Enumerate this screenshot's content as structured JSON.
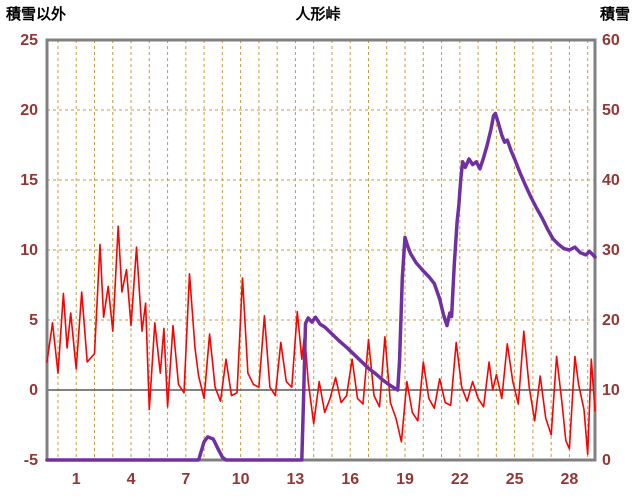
{
  "header": {
    "left_axis_label": "積雪以外",
    "title": "人形峠",
    "right_axis_label": "積雪"
  },
  "chart_data": {
    "type": "line",
    "title": "人形峠",
    "x_axis": {
      "range": [
        -0.6,
        29.4
      ],
      "ticks": [
        1,
        4,
        7,
        10,
        13,
        16,
        19,
        22,
        25,
        28
      ],
      "gridline_step": 1,
      "grid": true
    },
    "left_axis": {
      "label": "積雪以外",
      "range": [
        -5,
        25
      ],
      "ticks": [
        25,
        20,
        15,
        10,
        5,
        0,
        -5
      ],
      "grid": true
    },
    "right_axis": {
      "label": "積雪",
      "range": [
        0,
        60
      ],
      "ticks": [
        60,
        50,
        40,
        30,
        20,
        10,
        0
      ]
    },
    "legend": "none",
    "colors": {
      "grid": "#c49a4a",
      "frame": "#808080",
      "zero_line": "#595959",
      "tick_text": "#943634",
      "title_text": "#000000",
      "background": "#ffffff",
      "series_red": "#ff0000",
      "series_purple": "#7030a0"
    },
    "series": [
      {
        "name": "積雪以外",
        "axis": "left",
        "color": "#ff0000",
        "width": 1.6,
        "points": [
          [
            -0.6,
            2.0
          ],
          [
            -0.3,
            4.8
          ],
          [
            0.0,
            1.2
          ],
          [
            0.3,
            6.9
          ],
          [
            0.5,
            3.0
          ],
          [
            0.7,
            5.5
          ],
          [
            1.0,
            1.5
          ],
          [
            1.3,
            7.0
          ],
          [
            1.6,
            2.0
          ],
          [
            2.0,
            2.6
          ],
          [
            2.3,
            10.4
          ],
          [
            2.5,
            5.2
          ],
          [
            2.75,
            7.4
          ],
          [
            3.0,
            4.2
          ],
          [
            3.3,
            11.7
          ],
          [
            3.5,
            7.0
          ],
          [
            3.75,
            8.6
          ],
          [
            4.0,
            4.6
          ],
          [
            4.3,
            10.2
          ],
          [
            4.6,
            4.2
          ],
          [
            4.8,
            6.2
          ],
          [
            5.0,
            -1.4
          ],
          [
            5.3,
            4.8
          ],
          [
            5.6,
            1.2
          ],
          [
            5.8,
            4.4
          ],
          [
            6.0,
            -1.2
          ],
          [
            6.3,
            4.6
          ],
          [
            6.6,
            0.4
          ],
          [
            6.9,
            -0.2
          ],
          [
            7.2,
            8.3
          ],
          [
            7.5,
            3.0
          ],
          [
            7.7,
            1.0
          ],
          [
            8.0,
            -0.6
          ],
          [
            8.3,
            4.0
          ],
          [
            8.6,
            0.2
          ],
          [
            8.9,
            -0.8
          ],
          [
            9.2,
            2.2
          ],
          [
            9.5,
            -0.4
          ],
          [
            9.8,
            -0.2
          ],
          [
            10.1,
            8.0
          ],
          [
            10.4,
            1.2
          ],
          [
            10.7,
            0.4
          ],
          [
            11.0,
            0.2
          ],
          [
            11.3,
            5.3
          ],
          [
            11.6,
            0.2
          ],
          [
            11.9,
            -0.4
          ],
          [
            12.2,
            3.4
          ],
          [
            12.5,
            0.6
          ],
          [
            12.8,
            0.2
          ],
          [
            13.1,
            5.6
          ],
          [
            13.35,
            2.2
          ],
          [
            13.5,
            4.0
          ],
          [
            13.7,
            0.6
          ],
          [
            14.0,
            -2.4
          ],
          [
            14.3,
            0.6
          ],
          [
            14.6,
            -1.6
          ],
          [
            14.9,
            -0.6
          ],
          [
            15.2,
            0.9
          ],
          [
            15.5,
            -0.9
          ],
          [
            15.8,
            -0.4
          ],
          [
            16.1,
            2.2
          ],
          [
            16.4,
            -0.6
          ],
          [
            16.7,
            -1.0
          ],
          [
            17.0,
            3.6
          ],
          [
            17.3,
            -0.4
          ],
          [
            17.6,
            -1.2
          ],
          [
            17.9,
            3.8
          ],
          [
            18.2,
            -0.9
          ],
          [
            18.5,
            -2.0
          ],
          [
            18.8,
            -3.7
          ],
          [
            19.1,
            0.6
          ],
          [
            19.4,
            -1.6
          ],
          [
            19.7,
            -2.2
          ],
          [
            20.0,
            2.0
          ],
          [
            20.3,
            -0.6
          ],
          [
            20.6,
            -1.3
          ],
          [
            20.9,
            0.8
          ],
          [
            21.2,
            -0.9
          ],
          [
            21.5,
            -1.1
          ],
          [
            21.8,
            3.4
          ],
          [
            22.1,
            0.2
          ],
          [
            22.4,
            -0.8
          ],
          [
            22.7,
            0.6
          ],
          [
            23.0,
            -0.6
          ],
          [
            23.3,
            -1.2
          ],
          [
            23.6,
            2.0
          ],
          [
            23.8,
            0.0
          ],
          [
            24.0,
            1.1
          ],
          [
            24.3,
            -0.6
          ],
          [
            24.6,
            3.3
          ],
          [
            24.9,
            0.6
          ],
          [
            25.2,
            -1.0
          ],
          [
            25.5,
            4.2
          ],
          [
            25.8,
            0.2
          ],
          [
            26.1,
            -2.2
          ],
          [
            26.4,
            1.0
          ],
          [
            26.7,
            -2.0
          ],
          [
            27.0,
            -3.2
          ],
          [
            27.3,
            2.4
          ],
          [
            27.6,
            -1.0
          ],
          [
            27.8,
            -3.6
          ],
          [
            28.0,
            -4.2
          ],
          [
            28.3,
            2.4
          ],
          [
            28.5,
            0.4
          ],
          [
            28.8,
            -1.4
          ],
          [
            29.0,
            -4.6
          ],
          [
            29.2,
            2.2
          ],
          [
            29.4,
            -1.5
          ]
        ]
      },
      {
        "name": "積雪",
        "axis": "right",
        "color": "#7030a0",
        "width": 3.5,
        "points": [
          [
            -0.6,
            0
          ],
          [
            7.7,
            0
          ],
          [
            8.0,
            2.6
          ],
          [
            8.2,
            3.3
          ],
          [
            8.5,
            3.0
          ],
          [
            8.8,
            1.4
          ],
          [
            9.0,
            0.4
          ],
          [
            9.2,
            0
          ],
          [
            13.35,
            0
          ],
          [
            13.45,
            9
          ],
          [
            13.55,
            19.5
          ],
          [
            13.7,
            20.3
          ],
          [
            13.9,
            19.7
          ],
          [
            14.1,
            20.4
          ],
          [
            14.35,
            19.4
          ],
          [
            14.6,
            19.0
          ],
          [
            15.0,
            18.0
          ],
          [
            15.4,
            17.0
          ],
          [
            15.8,
            16.1
          ],
          [
            16.2,
            15.1
          ],
          [
            16.6,
            14.1
          ],
          [
            17.0,
            13.1
          ],
          [
            17.4,
            12.3
          ],
          [
            17.8,
            11.4
          ],
          [
            18.1,
            10.8
          ],
          [
            18.4,
            10.3
          ],
          [
            18.6,
            10.0
          ],
          [
            18.7,
            14.0
          ],
          [
            18.85,
            26.0
          ],
          [
            19.0,
            31.8
          ],
          [
            19.15,
            30.5
          ],
          [
            19.3,
            29.5
          ],
          [
            19.6,
            28.2
          ],
          [
            20.0,
            27.0
          ],
          [
            20.3,
            26.2
          ],
          [
            20.6,
            25.2
          ],
          [
            20.9,
            23.0
          ],
          [
            21.1,
            20.8
          ],
          [
            21.3,
            19.2
          ],
          [
            21.45,
            21.0
          ],
          [
            21.55,
            20.5
          ],
          [
            21.7,
            28.0
          ],
          [
            21.85,
            34.0
          ],
          [
            21.95,
            36.5
          ],
          [
            22.05,
            40.0
          ],
          [
            22.15,
            42.6
          ],
          [
            22.3,
            41.8
          ],
          [
            22.5,
            43.0
          ],
          [
            22.7,
            42.2
          ],
          [
            22.9,
            42.6
          ],
          [
            23.1,
            41.6
          ],
          [
            23.3,
            43.2
          ],
          [
            23.5,
            45.0
          ],
          [
            23.7,
            47.2
          ],
          [
            23.85,
            49.2
          ],
          [
            23.95,
            49.5
          ],
          [
            24.1,
            48.2
          ],
          [
            24.3,
            46.4
          ],
          [
            24.45,
            45.4
          ],
          [
            24.6,
            45.7
          ],
          [
            24.8,
            44.2
          ],
          [
            25.0,
            43.0
          ],
          [
            25.3,
            41.0
          ],
          [
            25.6,
            39.2
          ],
          [
            25.9,
            37.5
          ],
          [
            26.2,
            36.0
          ],
          [
            26.5,
            34.6
          ],
          [
            26.8,
            33.0
          ],
          [
            27.1,
            31.6
          ],
          [
            27.4,
            30.8
          ],
          [
            27.7,
            30.2
          ],
          [
            28.0,
            30.0
          ],
          [
            28.3,
            30.4
          ],
          [
            28.6,
            29.6
          ],
          [
            28.9,
            29.3
          ],
          [
            29.1,
            29.8
          ],
          [
            29.25,
            29.4
          ],
          [
            29.4,
            29.0
          ]
        ]
      }
    ]
  }
}
